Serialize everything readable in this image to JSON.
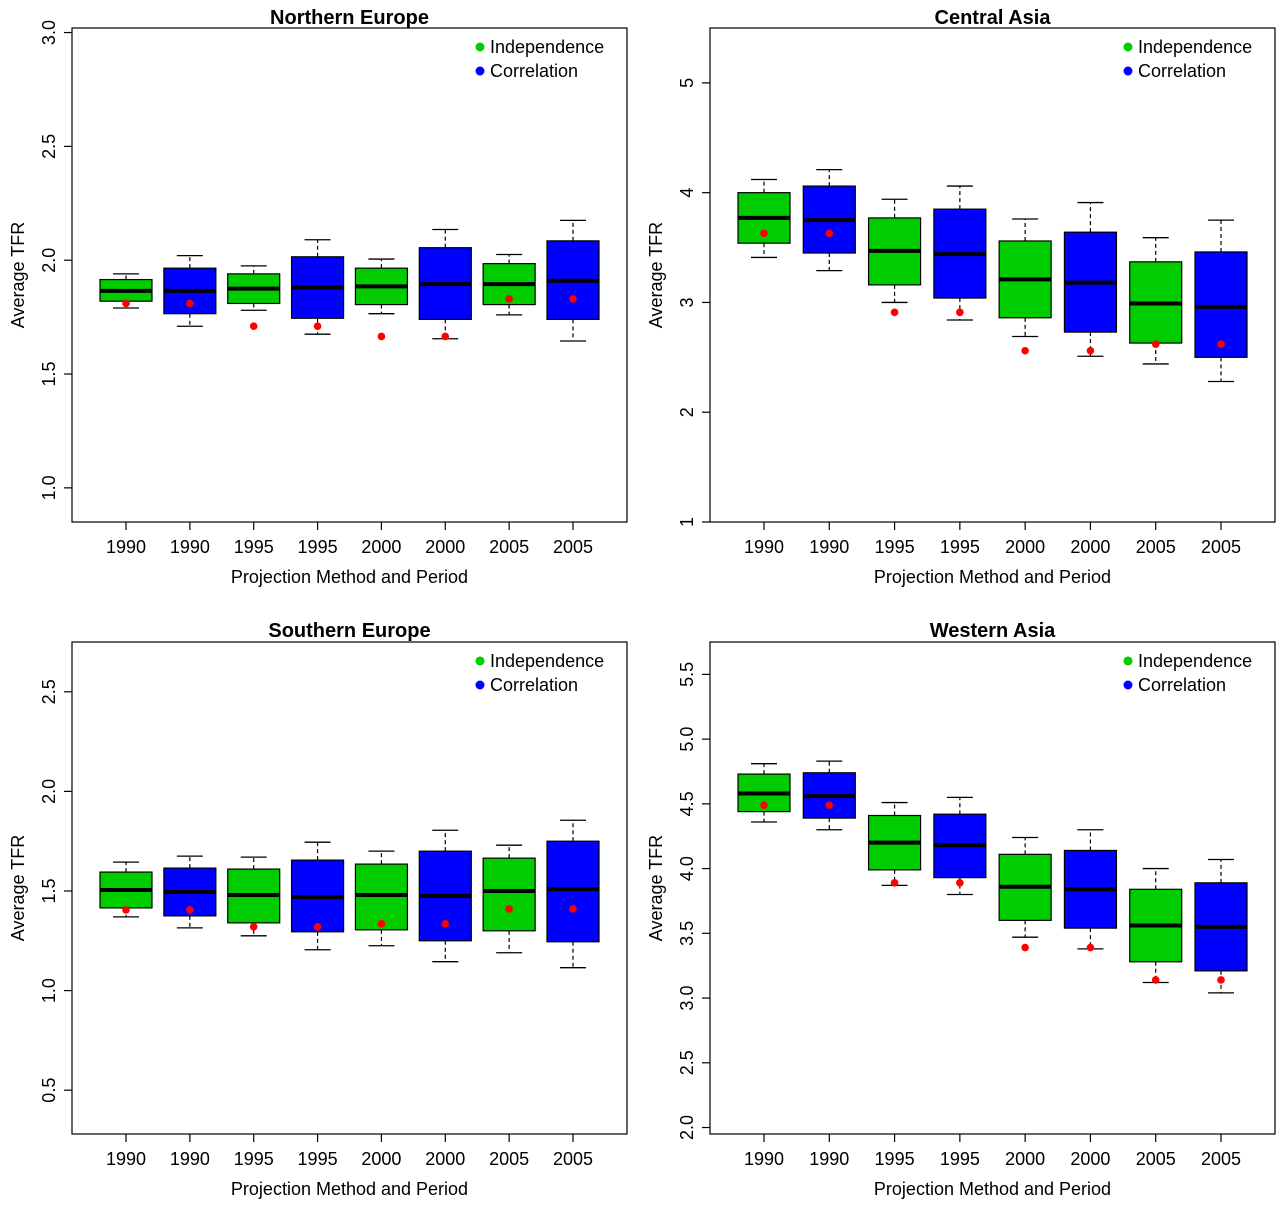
{
  "chart_data": [
    {
      "type": "box",
      "title": "Northern Europe",
      "xlabel": "Projection Method and Period",
      "ylabel": "Average TFR",
      "ylim": [
        0.85,
        3.02
      ],
      "yticks": [
        "1.0",
        "1.5",
        "2.0",
        "2.5",
        "3.0"
      ],
      "categories": [
        "1990",
        "1990",
        "1995",
        "1995",
        "2000",
        "2000",
        "2005",
        "2005"
      ],
      "legend": {
        "position": "top-right",
        "entries": [
          {
            "label": "Independence",
            "color": "#00cc00"
          },
          {
            "label": "Correlation",
            "color": "#0000ff"
          }
        ]
      },
      "boxes": [
        {
          "series": "Independence",
          "whisker_low": 1.79,
          "q1": 1.82,
          "median": 1.865,
          "q3": 1.915,
          "whisker_high": 1.94,
          "point": 1.81
        },
        {
          "series": "Correlation",
          "whisker_low": 1.71,
          "q1": 1.765,
          "median": 1.865,
          "q3": 1.965,
          "whisker_high": 2.02,
          "point": 1.81
        },
        {
          "series": "Independence",
          "whisker_low": 1.78,
          "q1": 1.81,
          "median": 1.875,
          "q3": 1.94,
          "whisker_high": 1.975,
          "point": 1.71
        },
        {
          "series": "Correlation",
          "whisker_low": 1.675,
          "q1": 1.745,
          "median": 1.88,
          "q3": 2.015,
          "whisker_high": 2.09,
          "point": 1.71
        },
        {
          "series": "Independence",
          "whisker_low": 1.765,
          "q1": 1.805,
          "median": 1.885,
          "q3": 1.965,
          "whisker_high": 2.005,
          "point": 1.665
        },
        {
          "series": "Correlation",
          "whisker_low": 1.655,
          "q1": 1.74,
          "median": 1.895,
          "q3": 2.055,
          "whisker_high": 2.135,
          "point": 1.665
        },
        {
          "series": "Independence",
          "whisker_low": 1.76,
          "q1": 1.805,
          "median": 1.895,
          "q3": 1.985,
          "whisker_high": 2.025,
          "point": 1.83
        },
        {
          "series": "Correlation",
          "whisker_low": 1.645,
          "q1": 1.74,
          "median": 1.91,
          "q3": 2.085,
          "whisker_high": 2.175,
          "point": 1.83
        }
      ]
    },
    {
      "type": "box",
      "title": "Central Asia",
      "xlabel": "Projection Method and Period",
      "ylabel": "Average TFR",
      "ylim": [
        1.0,
        5.5
      ],
      "yticks": [
        "1",
        "2",
        "3",
        "4",
        "5"
      ],
      "categories": [
        "1990",
        "1990",
        "1995",
        "1995",
        "2000",
        "2000",
        "2005",
        "2005"
      ],
      "legend": {
        "position": "top-right",
        "entries": [
          {
            "label": "Independence",
            "color": "#00cc00"
          },
          {
            "label": "Correlation",
            "color": "#0000ff"
          }
        ]
      },
      "boxes": [
        {
          "series": "Independence",
          "whisker_low": 3.41,
          "q1": 3.54,
          "median": 3.77,
          "q3": 4.0,
          "whisker_high": 4.12,
          "point": 3.63
        },
        {
          "series": "Correlation",
          "whisker_low": 3.29,
          "q1": 3.45,
          "median": 3.75,
          "q3": 4.06,
          "whisker_high": 4.21,
          "point": 3.63
        },
        {
          "series": "Independence",
          "whisker_low": 3.0,
          "q1": 3.16,
          "median": 3.47,
          "q3": 3.77,
          "whisker_high": 3.94,
          "point": 2.91
        },
        {
          "series": "Correlation",
          "whisker_low": 2.84,
          "q1": 3.04,
          "median": 3.44,
          "q3": 3.85,
          "whisker_high": 4.06,
          "point": 2.91
        },
        {
          "series": "Independence",
          "whisker_low": 2.69,
          "q1": 2.86,
          "median": 3.21,
          "q3": 3.56,
          "whisker_high": 3.76,
          "point": 2.56
        },
        {
          "series": "Correlation",
          "whisker_low": 2.51,
          "q1": 2.73,
          "median": 3.18,
          "q3": 3.64,
          "whisker_high": 3.91,
          "point": 2.56
        },
        {
          "series": "Independence",
          "whisker_low": 2.44,
          "q1": 2.63,
          "median": 2.99,
          "q3": 3.37,
          "whisker_high": 3.59,
          "point": 2.62
        },
        {
          "series": "Correlation",
          "whisker_low": 2.28,
          "q1": 2.5,
          "median": 2.96,
          "q3": 3.46,
          "whisker_high": 3.75,
          "point": 2.62
        }
      ]
    },
    {
      "type": "box",
      "title": "Southern Europe",
      "xlabel": "Projection Method and Period",
      "ylabel": "Average TFR",
      "ylim": [
        0.28,
        2.75
      ],
      "yticks": [
        "0.5",
        "1.0",
        "1.5",
        "2.0",
        "2.5"
      ],
      "categories": [
        "1990",
        "1990",
        "1995",
        "1995",
        "2000",
        "2000",
        "2005",
        "2005"
      ],
      "legend": {
        "position": "top-right",
        "entries": [
          {
            "label": "Independence",
            "color": "#00cc00"
          },
          {
            "label": "Correlation",
            "color": "#0000ff"
          }
        ]
      },
      "boxes": [
        {
          "series": "Independence",
          "whisker_low": 1.37,
          "q1": 1.415,
          "median": 1.505,
          "q3": 1.595,
          "whisker_high": 1.645,
          "point": 1.405
        },
        {
          "series": "Correlation",
          "whisker_low": 1.315,
          "q1": 1.375,
          "median": 1.495,
          "q3": 1.615,
          "whisker_high": 1.675,
          "point": 1.405
        },
        {
          "series": "Independence",
          "whisker_low": 1.275,
          "q1": 1.34,
          "median": 1.48,
          "q3": 1.61,
          "whisker_high": 1.67,
          "point": 1.32
        },
        {
          "series": "Correlation",
          "whisker_low": 1.205,
          "q1": 1.295,
          "median": 1.47,
          "q3": 1.655,
          "whisker_high": 1.745,
          "point": 1.32
        },
        {
          "series": "Independence",
          "whisker_low": 1.225,
          "q1": 1.305,
          "median": 1.48,
          "q3": 1.635,
          "whisker_high": 1.7,
          "point": 1.335
        },
        {
          "series": "Correlation",
          "whisker_low": 1.145,
          "q1": 1.25,
          "median": 1.475,
          "q3": 1.7,
          "whisker_high": 1.805,
          "point": 1.335
        },
        {
          "series": "Independence",
          "whisker_low": 1.19,
          "q1": 1.3,
          "median": 1.5,
          "q3": 1.665,
          "whisker_high": 1.73,
          "point": 1.41
        },
        {
          "series": "Correlation",
          "whisker_low": 1.115,
          "q1": 1.245,
          "median": 1.51,
          "q3": 1.75,
          "whisker_high": 1.855,
          "point": 1.41
        }
      ]
    },
    {
      "type": "box",
      "title": "Western Asia",
      "xlabel": "Projection Method and Period",
      "ylabel": "Average TFR",
      "ylim": [
        1.95,
        5.75
      ],
      "yticks": [
        "2.0",
        "2.5",
        "3.0",
        "3.5",
        "4.0",
        "4.5",
        "5.0",
        "5.5"
      ],
      "categories": [
        "1990",
        "1990",
        "1995",
        "1995",
        "2000",
        "2000",
        "2005",
        "2005"
      ],
      "legend": {
        "position": "top-right",
        "entries": [
          {
            "label": "Independence",
            "color": "#00cc00"
          },
          {
            "label": "Correlation",
            "color": "#0000ff"
          }
        ]
      },
      "boxes": [
        {
          "series": "Independence",
          "whisker_low": 4.36,
          "q1": 4.44,
          "median": 4.58,
          "q3": 4.73,
          "whisker_high": 4.81,
          "point": 4.49
        },
        {
          "series": "Correlation",
          "whisker_low": 4.3,
          "q1": 4.39,
          "median": 4.56,
          "q3": 4.74,
          "whisker_high": 4.83,
          "point": 4.49
        },
        {
          "series": "Independence",
          "whisker_low": 3.87,
          "q1": 3.99,
          "median": 4.2,
          "q3": 4.41,
          "whisker_high": 4.51,
          "point": 3.89
        },
        {
          "series": "Correlation",
          "whisker_low": 3.8,
          "q1": 3.93,
          "median": 4.18,
          "q3": 4.42,
          "whisker_high": 4.55,
          "point": 3.89
        },
        {
          "series": "Independence",
          "whisker_low": 3.47,
          "q1": 3.6,
          "median": 3.86,
          "q3": 4.11,
          "whisker_high": 4.24,
          "point": 3.39
        },
        {
          "series": "Correlation",
          "whisker_low": 3.38,
          "q1": 3.54,
          "median": 3.84,
          "q3": 4.14,
          "whisker_high": 4.3,
          "point": 3.39
        },
        {
          "series": "Independence",
          "whisker_low": 3.12,
          "q1": 3.28,
          "median": 3.56,
          "q3": 3.84,
          "whisker_high": 4.0,
          "point": 3.14
        },
        {
          "series": "Correlation",
          "whisker_low": 3.04,
          "q1": 3.21,
          "median": 3.55,
          "q3": 3.89,
          "whisker_high": 4.07,
          "point": 3.14
        }
      ]
    }
  ],
  "colors": {
    "independence": "#00cc00",
    "correlation": "#0000ff",
    "point": "#ff0000",
    "median": "#000000"
  }
}
